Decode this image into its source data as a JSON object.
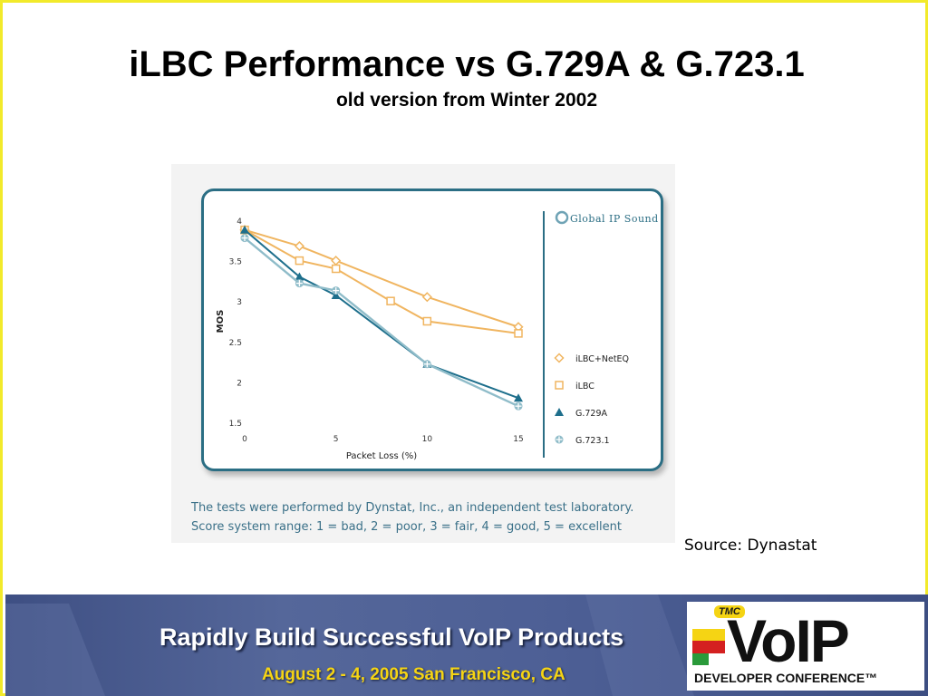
{
  "slide": {
    "title": "iLBC Performance vs G.729A & G.723.1",
    "subtitle": "old version from Winter 2002",
    "source": "Source: Dynastat"
  },
  "caption": {
    "line1": "The tests were performed by Dynstat, Inc., an independent test laboratory.",
    "line2": "Score system range: 1 = bad, 2 = poor, 3 = fair, 4 = good, 5 = excellent"
  },
  "brand": {
    "logo_text": "Global IP Sound",
    "logo_icon": "global-ip-sound-icon"
  },
  "footer": {
    "tagline": "Rapidly Build Successful VoIP Products",
    "date_location": "August 2 - 4, 2005 San Francisco, CA",
    "logo_tmc": "TMC",
    "logo_voip": "VoIP",
    "logo_conference": "DEVELOPER CONFERENCE™"
  },
  "colors": {
    "frame": "#f2ea2a",
    "chart_border": "#2b6e84",
    "ilbc": "#f0b560",
    "g729a": "#1e6f8c",
    "g7231": "#8fbcc9",
    "banner": "#4d5f95",
    "banner_date": "#f5d414"
  },
  "chart_data": {
    "type": "line",
    "xlabel": "Packet Loss (%)",
    "ylabel": "MOS",
    "xlim": [
      0,
      15
    ],
    "ylim": [
      1.5,
      4
    ],
    "xticks": [
      0,
      5,
      10,
      15
    ],
    "xtick_labels": [
      "0",
      "5",
      "10",
      "15"
    ],
    "yticks": [
      1.5,
      2,
      2.5,
      3,
      3.5,
      4
    ],
    "ytick_labels": [
      "1.5",
      "2",
      "2.5",
      "3",
      "3.5",
      "4"
    ],
    "grid": false,
    "legend_position": "right",
    "series": [
      {
        "name": "iLBC+NetEQ",
        "marker": "diamond",
        "color": "#f0b560",
        "x": [
          0,
          3,
          5,
          10,
          15
        ],
        "y": [
          3.88,
          3.68,
          3.5,
          3.05,
          2.68
        ]
      },
      {
        "name": "iLBC",
        "marker": "square",
        "color": "#f0b560",
        "x": [
          0,
          3,
          5,
          8,
          10,
          15
        ],
        "y": [
          3.88,
          3.5,
          3.4,
          3.0,
          2.75,
          2.6
        ]
      },
      {
        "name": "G.729A",
        "marker": "triangle",
        "color": "#1e6f8c",
        "x": [
          0,
          3,
          5,
          10,
          15
        ],
        "y": [
          3.88,
          3.3,
          3.07,
          2.22,
          1.8
        ]
      },
      {
        "name": "G.723.1",
        "marker": "cross",
        "color": "#8fbcc9",
        "x": [
          0,
          3,
          5,
          10,
          15
        ],
        "y": [
          3.78,
          3.22,
          3.13,
          2.22,
          1.7
        ]
      }
    ]
  }
}
